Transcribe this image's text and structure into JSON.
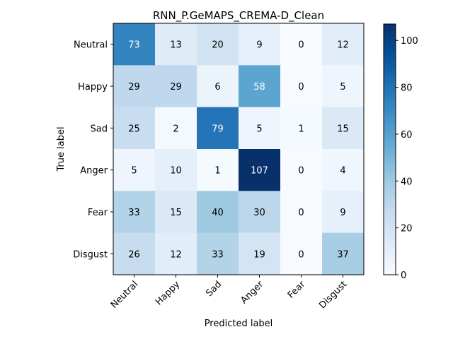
{
  "chart_data": {
    "type": "heatmap",
    "title": "RNN_P.GeMAPS_CREMA-D_Clean",
    "xlabel": "Predicted label",
    "ylabel": "True label",
    "x_categories": [
      "Neutral",
      "Happy",
      "Sad",
      "Anger",
      "Fear",
      "Disgust"
    ],
    "y_categories": [
      "Neutral",
      "Happy",
      "Sad",
      "Anger",
      "Fear",
      "Disgust"
    ],
    "values": [
      [
        73,
        13,
        20,
        9,
        0,
        12
      ],
      [
        29,
        29,
        6,
        58,
        0,
        5
      ],
      [
        25,
        2,
        79,
        5,
        1,
        15
      ],
      [
        5,
        10,
        1,
        107,
        0,
        4
      ],
      [
        33,
        15,
        40,
        30,
        0,
        9
      ],
      [
        26,
        12,
        33,
        19,
        0,
        37
      ]
    ],
    "colorbar": {
      "range": [
        0,
        107
      ],
      "ticks": [
        0,
        20,
        40,
        60,
        80,
        100
      ]
    },
    "colormap": "Blues",
    "grid": false
  }
}
